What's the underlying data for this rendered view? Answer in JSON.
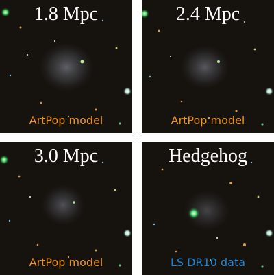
{
  "panels": [
    {
      "title": "1.8 Mpc",
      "caption": "ArtPop model",
      "caption_color": "#f2951c"
    },
    {
      "title": "2.4 Mpc",
      "caption": "ArtPop model",
      "caption_color": "#f2951c"
    },
    {
      "title": "3.0 Mpc",
      "caption": "ArtPop model",
      "caption_color": "#f2951c"
    },
    {
      "title": "Hedgehog",
      "caption": "LS DR10 data",
      "caption_color": "#1f86d6"
    }
  ],
  "colors": {
    "background": "#16130f",
    "title_text": "#ffffff",
    "model_caption": "#f2951c",
    "data_caption": "#1f86d6"
  }
}
